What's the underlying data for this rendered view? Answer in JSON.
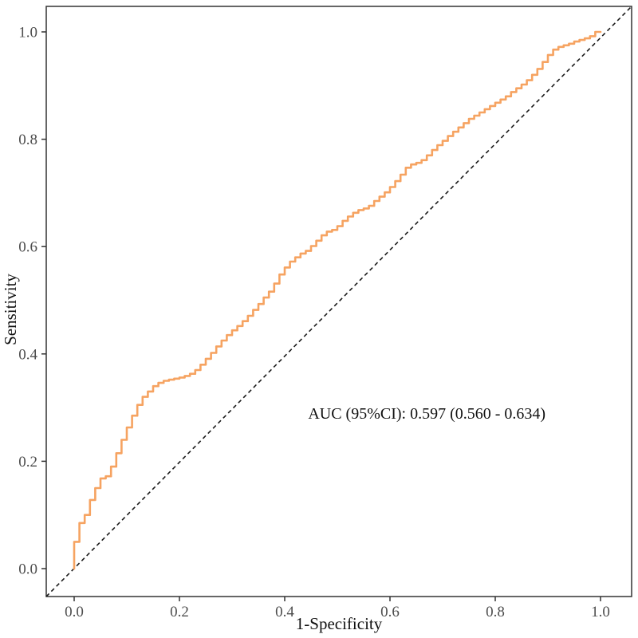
{
  "chart_data": {
    "type": "line",
    "subtype": "roc-curve",
    "title": "",
    "xlabel": "1-Specificity",
    "ylabel": "Sensitivity",
    "xlim": [
      0.0,
      1.0
    ],
    "ylim": [
      0.0,
      1.0
    ],
    "grid": false,
    "legend_position": "none",
    "x_ticks": {
      "values": [
        0.0,
        0.2,
        0.4,
        0.6,
        0.8,
        1.0
      ],
      "labels": [
        "0.0",
        "0.2",
        "0.4",
        "0.6",
        "0.8",
        "1.0"
      ]
    },
    "y_ticks": {
      "values": [
        0.0,
        0.2,
        0.4,
        0.6,
        0.8,
        1.0
      ],
      "labels": [
        "0.0",
        "0.2",
        "0.4",
        "0.6",
        "0.8",
        "1.0"
      ]
    },
    "annotation": {
      "text": "AUC (95%CI): 0.597 (0.560 - 0.634)",
      "x": 0.67,
      "y": 0.29
    },
    "auc": 0.597,
    "auc_ci_low": 0.56,
    "auc_ci_high": 0.634,
    "series": [
      {
        "name": "ROC curve",
        "color": "#F6A361",
        "line_style": "solid-step",
        "points": [
          [
            0.0,
            0.0
          ],
          [
            0.01,
            0.05
          ],
          [
            0.02,
            0.085
          ],
          [
            0.03,
            0.1
          ],
          [
            0.04,
            0.128
          ],
          [
            0.05,
            0.15
          ],
          [
            0.06,
            0.168
          ],
          [
            0.07,
            0.172
          ],
          [
            0.08,
            0.19
          ],
          [
            0.09,
            0.215
          ],
          [
            0.1,
            0.24
          ],
          [
            0.11,
            0.263
          ],
          [
            0.12,
            0.285
          ],
          [
            0.13,
            0.305
          ],
          [
            0.14,
            0.32
          ],
          [
            0.15,
            0.33
          ],
          [
            0.16,
            0.34
          ],
          [
            0.17,
            0.346
          ],
          [
            0.18,
            0.35
          ],
          [
            0.19,
            0.352
          ],
          [
            0.2,
            0.354
          ],
          [
            0.21,
            0.356
          ],
          [
            0.22,
            0.359
          ],
          [
            0.23,
            0.363
          ],
          [
            0.24,
            0.37
          ],
          [
            0.25,
            0.38
          ],
          [
            0.26,
            0.391
          ],
          [
            0.27,
            0.402
          ],
          [
            0.28,
            0.414
          ],
          [
            0.29,
            0.425
          ],
          [
            0.3,
            0.435
          ],
          [
            0.31,
            0.444
          ],
          [
            0.32,
            0.452
          ],
          [
            0.33,
            0.461
          ],
          [
            0.34,
            0.471
          ],
          [
            0.35,
            0.482
          ],
          [
            0.36,
            0.493
          ],
          [
            0.37,
            0.505
          ],
          [
            0.38,
            0.516
          ],
          [
            0.39,
            0.531
          ],
          [
            0.4,
            0.548
          ],
          [
            0.41,
            0.561
          ],
          [
            0.42,
            0.572
          ],
          [
            0.43,
            0.58
          ],
          [
            0.44,
            0.587
          ],
          [
            0.45,
            0.592
          ],
          [
            0.46,
            0.601
          ],
          [
            0.47,
            0.611
          ],
          [
            0.48,
            0.621
          ],
          [
            0.49,
            0.628
          ],
          [
            0.5,
            0.631
          ],
          [
            0.51,
            0.638
          ],
          [
            0.52,
            0.648
          ],
          [
            0.53,
            0.656
          ],
          [
            0.54,
            0.663
          ],
          [
            0.55,
            0.668
          ],
          [
            0.56,
            0.671
          ],
          [
            0.57,
            0.676
          ],
          [
            0.58,
            0.685
          ],
          [
            0.59,
            0.693
          ],
          [
            0.6,
            0.701
          ],
          [
            0.61,
            0.711
          ],
          [
            0.62,
            0.722
          ],
          [
            0.63,
            0.734
          ],
          [
            0.64,
            0.747
          ],
          [
            0.65,
            0.753
          ],
          [
            0.66,
            0.756
          ],
          [
            0.67,
            0.761
          ],
          [
            0.68,
            0.77
          ],
          [
            0.69,
            0.78
          ],
          [
            0.7,
            0.789
          ],
          [
            0.71,
            0.797
          ],
          [
            0.72,
            0.806
          ],
          [
            0.73,
            0.814
          ],
          [
            0.74,
            0.822
          ],
          [
            0.75,
            0.83
          ],
          [
            0.76,
            0.838
          ],
          [
            0.77,
            0.844
          ],
          [
            0.78,
            0.85
          ],
          [
            0.79,
            0.856
          ],
          [
            0.8,
            0.862
          ],
          [
            0.81,
            0.868
          ],
          [
            0.82,
            0.874
          ],
          [
            0.83,
            0.88
          ],
          [
            0.84,
            0.888
          ],
          [
            0.85,
            0.895
          ],
          [
            0.86,
            0.902
          ],
          [
            0.87,
            0.91
          ],
          [
            0.88,
            0.92
          ],
          [
            0.89,
            0.931
          ],
          [
            0.9,
            0.944
          ],
          [
            0.91,
            0.957
          ],
          [
            0.92,
            0.967
          ],
          [
            0.93,
            0.972
          ],
          [
            0.94,
            0.975
          ],
          [
            0.95,
            0.978
          ],
          [
            0.96,
            0.982
          ],
          [
            0.97,
            0.985
          ],
          [
            0.98,
            0.988
          ],
          [
            0.99,
            0.992
          ],
          [
            1.0,
            1.0
          ]
        ]
      },
      {
        "name": "Reference diagonal",
        "color": "#1A1A1A",
        "line_style": "dashed",
        "points": [
          [
            0.0,
            0.0
          ],
          [
            1.0,
            1.0
          ]
        ]
      }
    ]
  },
  "colors": {
    "curve": "#F6A361",
    "reference_line": "#1A1A1A",
    "axis_text": "#4D4D4D",
    "panel_border": "#333333",
    "background": "#FFFFFF"
  }
}
